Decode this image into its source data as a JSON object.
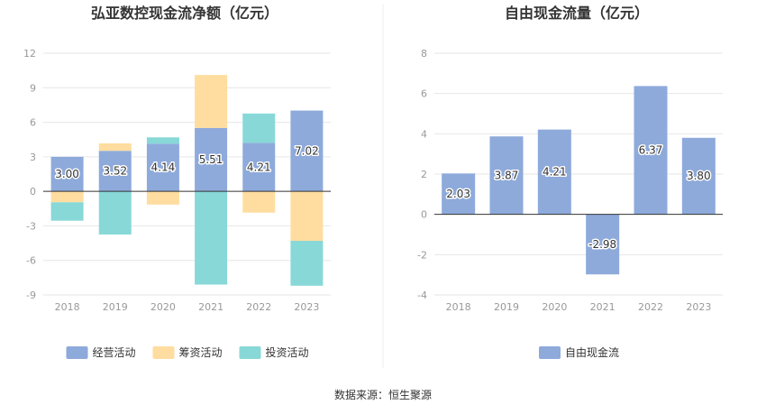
{
  "source_text": "数据来源：恒生聚源",
  "chart_data": [
    {
      "type": "bar",
      "stacked": true,
      "title": "弘亚数控现金流净额（亿元）",
      "categories": [
        "2018",
        "2019",
        "2020",
        "2021",
        "2022",
        "2023"
      ],
      "ylim": [
        -9,
        12
      ],
      "yticks": [
        12,
        9,
        6,
        3,
        0,
        -3,
        -6,
        -9
      ],
      "series": [
        {
          "name": "经营活动",
          "color": "#8eaadb",
          "values": [
            3.0,
            3.52,
            4.14,
            5.51,
            4.21,
            7.02
          ],
          "labels": [
            "3.00",
            "3.52",
            "4.14",
            "5.51",
            "4.21",
            "7.02"
          ]
        },
        {
          "name": "筹资活动",
          "color": "#ffdda0",
          "values": [
            -0.95,
            0.65,
            -1.15,
            4.6,
            -1.85,
            -4.3
          ]
        },
        {
          "name": "投资活动",
          "color": "#88d8d8",
          "values": [
            -1.6,
            -3.75,
            0.55,
            -8.1,
            2.55,
            -3.9
          ]
        }
      ],
      "legend_position": "bottom-center"
    },
    {
      "type": "bar",
      "title": "自由现金流量（亿元）",
      "categories": [
        "2018",
        "2019",
        "2020",
        "2021",
        "2022",
        "2023"
      ],
      "ylim": [
        -4,
        8
      ],
      "yticks": [
        8,
        6,
        4,
        2,
        0,
        -2,
        -4
      ],
      "series": [
        {
          "name": "自由现金流",
          "color": "#8eaadb",
          "values": [
            2.03,
            3.87,
            4.21,
            -2.98,
            6.37,
            3.8
          ],
          "labels": [
            "2.03",
            "3.87",
            "4.21",
            "-2.98",
            "6.37",
            "3.80"
          ]
        }
      ],
      "legend_position": "bottom-center"
    }
  ]
}
